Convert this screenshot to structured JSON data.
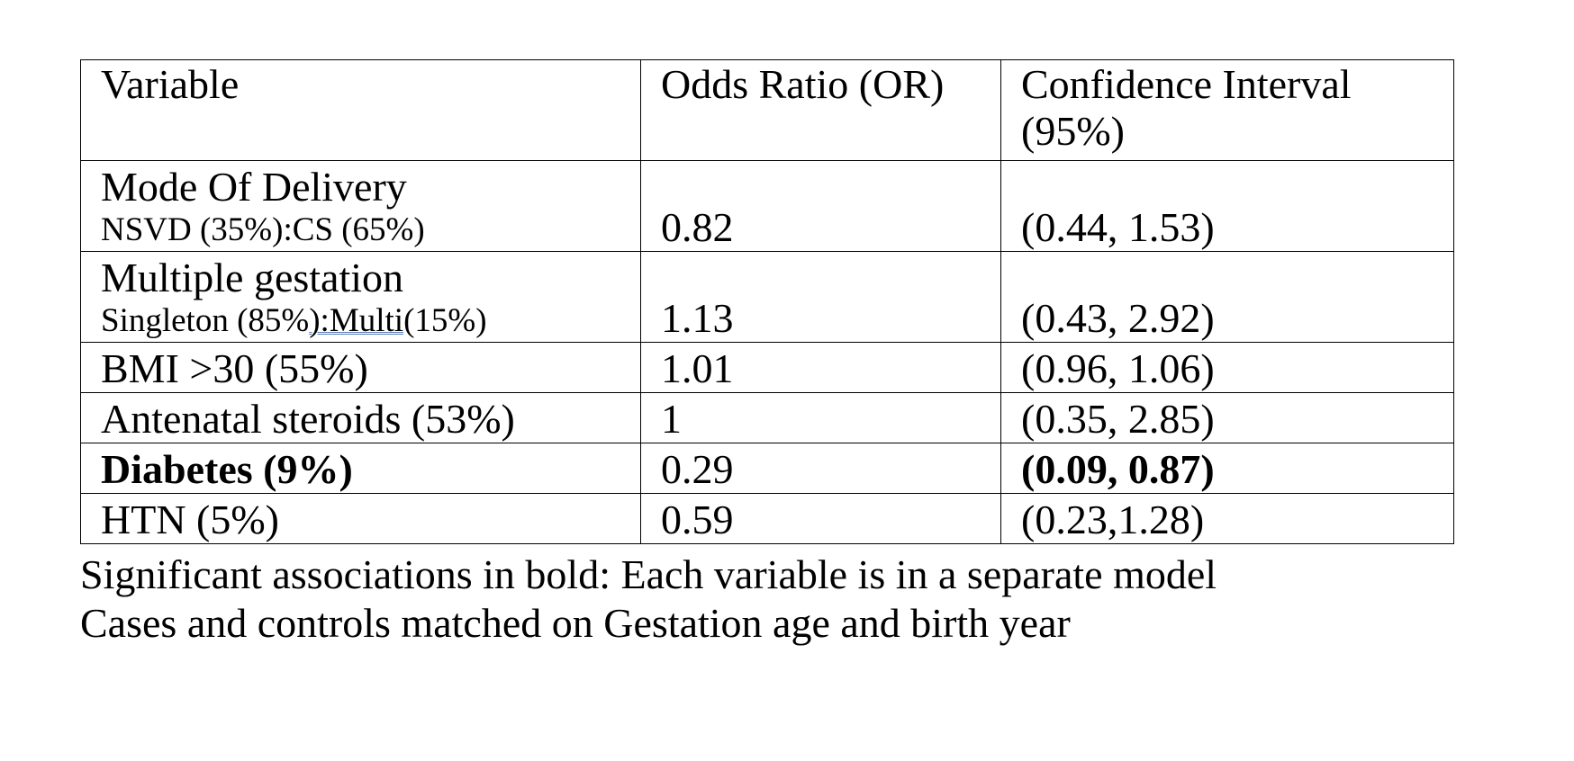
{
  "table": {
    "headers": [
      "Variable",
      "Odds Ratio (OR)",
      "Confidence Interval (95%)"
    ],
    "rows": [
      {
        "variable": "Mode Of Delivery",
        "detail_pre": "NSVD (35%):CS (65%)",
        "detail_underlined": "",
        "detail_post": "",
        "or": "0.82",
        "ci": "(0.44, 1.53)"
      },
      {
        "variable": "Multiple gestation",
        "detail_pre": "Singleton (85%",
        "detail_underlined": "):Multi",
        "detail_post": "(15%)",
        "or": "1.13",
        "ci": "(0.43, 2.92)"
      },
      {
        "variable": "BMI >30 (55%)",
        "or": "1.01",
        "ci": "(0.96, 1.06)"
      },
      {
        "variable": "Antenatal steroids (53%)",
        "or": "1",
        "ci": "(0.35, 2.85)"
      },
      {
        "variable": "Diabetes (9%)",
        "or": "0.29",
        "ci": "(0.09, 0.87)",
        "significant": true
      },
      {
        "variable": "HTN (5%)",
        "or": "0.59",
        "ci": "(0.23,1.28)"
      }
    ]
  },
  "footnotes": [
    "Significant associations in bold: Each variable is in a separate model",
    "Cases and controls matched on Gestation age and birth year"
  ]
}
